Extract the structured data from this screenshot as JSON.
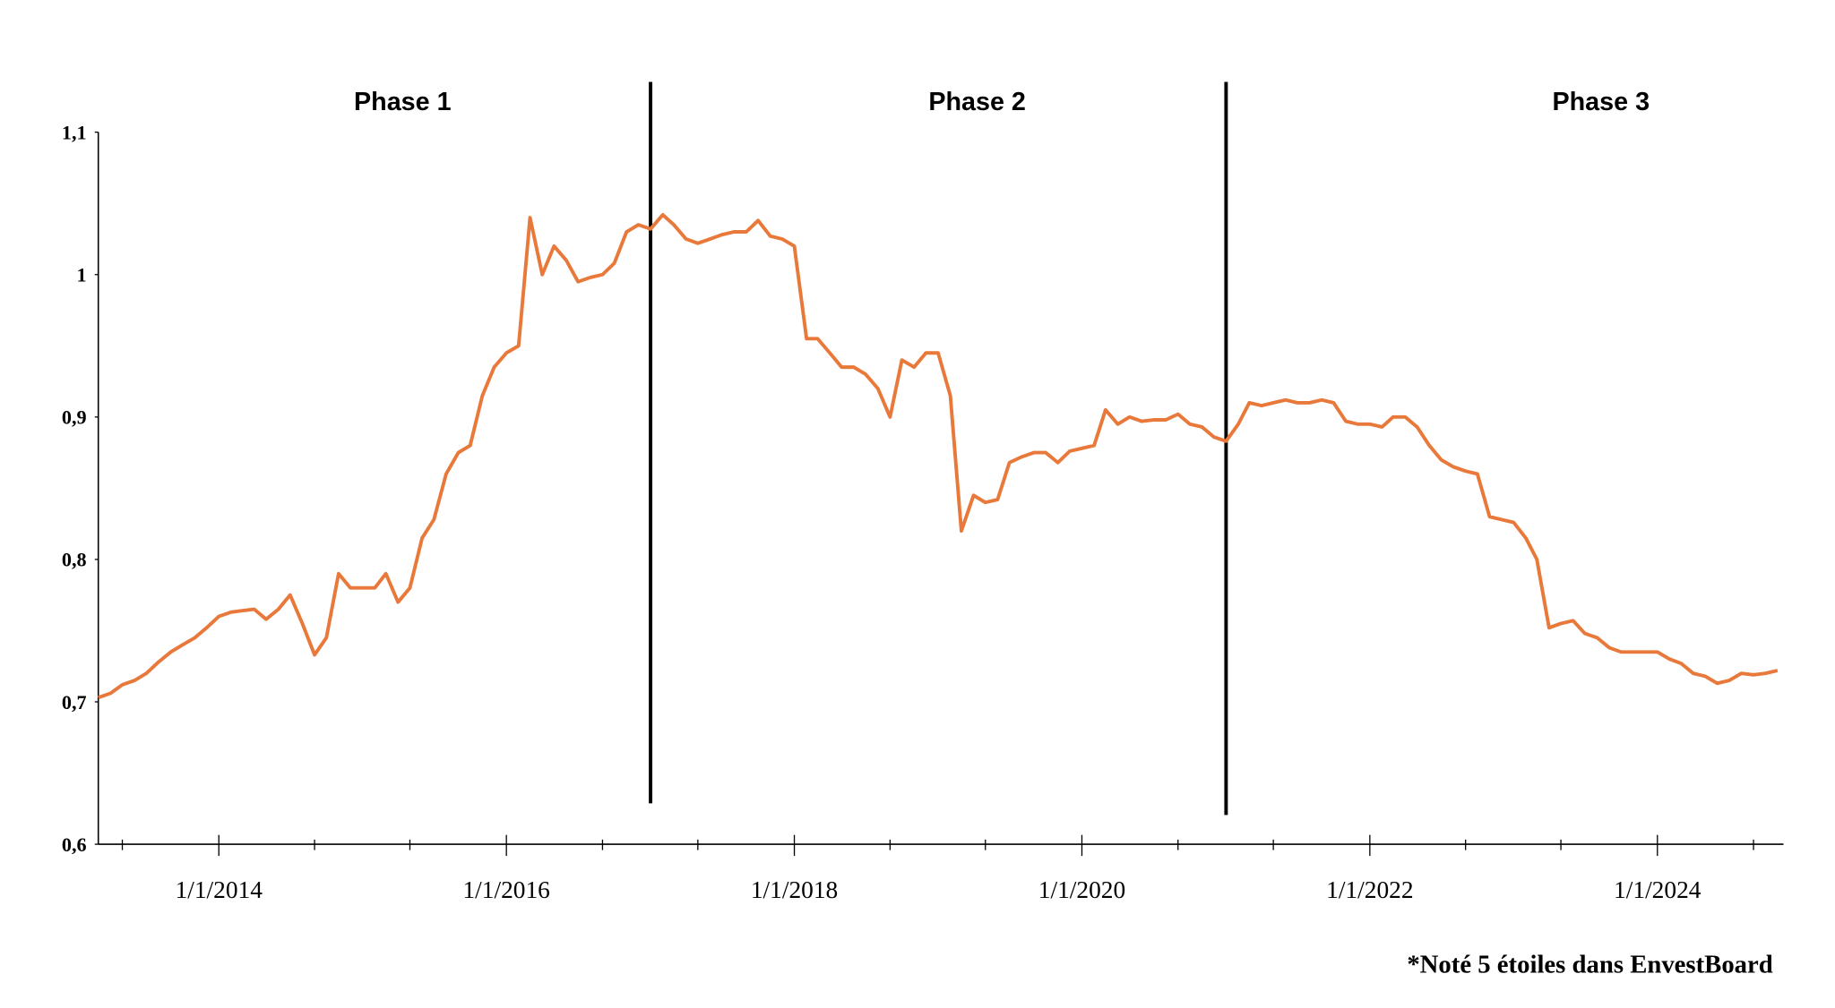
{
  "chart_data": {
    "type": "line",
    "x": [
      "3/1/2013",
      "4/1/2013",
      "5/1/2013",
      "6/1/2013",
      "7/1/2013",
      "8/1/2013",
      "9/1/2013",
      "10/1/2013",
      "11/1/2013",
      "12/1/2013",
      "1/1/2014",
      "2/1/2014",
      "3/1/2014",
      "4/1/2014",
      "5/1/2014",
      "6/1/2014",
      "7/1/2014",
      "8/1/2014",
      "9/1/2014",
      "10/1/2014",
      "11/1/2014",
      "12/1/2014",
      "1/1/2015",
      "2/1/2015",
      "3/1/2015",
      "4/1/2015",
      "5/1/2015",
      "6/1/2015",
      "7/1/2015",
      "8/1/2015",
      "9/1/2015",
      "10/1/2015",
      "11/1/2015",
      "12/1/2015",
      "1/1/2016",
      "2/1/2016",
      "3/1/2016",
      "4/1/2016",
      "5/1/2016",
      "6/1/2016",
      "7/1/2016",
      "8/1/2016",
      "9/1/2016",
      "10/1/2016",
      "11/1/2016",
      "12/1/2016",
      "1/1/2017",
      "2/1/2017",
      "3/1/2017",
      "4/1/2017",
      "5/1/2017",
      "6/1/2017",
      "7/1/2017",
      "8/1/2017",
      "9/1/2017",
      "10/1/2017",
      "11/1/2017",
      "12/1/2017",
      "1/1/2018",
      "2/1/2018",
      "3/1/2018",
      "4/1/2018",
      "5/1/2018",
      "6/1/2018",
      "7/1/2018",
      "8/1/2018",
      "9/1/2018",
      "10/1/2018",
      "11/1/2018",
      "12/1/2018",
      "1/1/2019",
      "2/1/2019",
      "3/1/2019",
      "4/1/2019",
      "5/1/2019",
      "6/1/2019",
      "7/1/2019",
      "8/1/2019",
      "9/1/2019",
      "10/1/2019",
      "11/1/2019",
      "12/1/2019",
      "1/1/2020",
      "2/1/2020",
      "3/1/2020",
      "4/1/2020",
      "5/1/2020",
      "6/1/2020",
      "7/1/2020",
      "8/1/2020",
      "9/1/2020",
      "10/1/2020",
      "11/1/2020",
      "12/1/2020",
      "1/1/2021",
      "2/1/2021",
      "3/1/2021",
      "4/1/2021",
      "5/1/2021",
      "6/1/2021",
      "7/1/2021",
      "8/1/2021",
      "9/1/2021",
      "10/1/2021",
      "11/1/2021",
      "12/1/2021",
      "1/1/2022",
      "2/1/2022",
      "3/1/2022",
      "4/1/2022",
      "5/1/2022",
      "6/1/2022",
      "7/1/2022",
      "8/1/2022",
      "9/1/2022",
      "10/1/2022",
      "11/1/2022",
      "12/1/2022",
      "1/1/2023",
      "2/1/2023",
      "3/1/2023",
      "4/1/2023",
      "5/1/2023",
      "6/1/2023",
      "7/1/2023",
      "8/1/2023",
      "9/1/2023",
      "10/1/2023",
      "11/1/2023",
      "12/1/2023",
      "1/1/2024",
      "2/1/2024",
      "3/1/2024",
      "4/1/2024",
      "5/1/2024",
      "6/1/2024",
      "7/1/2024",
      "8/1/2024",
      "9/1/2024",
      "10/1/2024",
      "11/1/2024"
    ],
    "values": [
      0.703,
      0.706,
      0.712,
      0.715,
      0.72,
      0.728,
      0.735,
      0.74,
      0.745,
      0.752,
      0.76,
      0.763,
      0.764,
      0.765,
      0.758,
      0.765,
      0.775,
      0.755,
      0.733,
      0.745,
      0.79,
      0.78,
      0.78,
      0.78,
      0.79,
      0.77,
      0.78,
      0.815,
      0.828,
      0.86,
      0.875,
      0.88,
      0.915,
      0.935,
      0.945,
      0.95,
      1.04,
      1.0,
      1.02,
      1.01,
      0.995,
      0.998,
      1.0,
      1.008,
      1.03,
      1.035,
      1.032,
      1.042,
      1.035,
      1.025,
      1.022,
      1.025,
      1.028,
      1.03,
      1.03,
      1.038,
      1.027,
      1.025,
      1.02,
      0.955,
      0.955,
      0.945,
      0.935,
      0.935,
      0.93,
      0.92,
      0.9,
      0.94,
      0.935,
      0.945,
      0.945,
      0.915,
      0.82,
      0.845,
      0.84,
      0.842,
      0.868,
      0.872,
      0.875,
      0.875,
      0.868,
      0.876,
      0.878,
      0.88,
      0.905,
      0.895,
      0.9,
      0.897,
      0.898,
      0.898,
      0.902,
      0.895,
      0.893,
      0.886,
      0.883,
      0.895,
      0.91,
      0.908,
      0.91,
      0.912,
      0.91,
      0.91,
      0.912,
      0.91,
      0.897,
      0.895,
      0.895,
      0.893,
      0.9,
      0.9,
      0.893,
      0.88,
      0.87,
      0.865,
      0.862,
      0.86,
      0.83,
      0.828,
      0.826,
      0.815,
      0.8,
      0.752,
      0.755,
      0.757,
      0.748,
      0.745,
      0.738,
      0.735,
      0.735,
      0.735,
      0.735,
      0.73,
      0.727,
      0.72,
      0.718,
      0.713,
      0.715,
      0.72,
      0.719,
      0.72,
      0.722
    ],
    "color": "#e8793a",
    "xlim": [
      "3/1/2013",
      "12/1/2024"
    ],
    "xticks": [
      "1/1/2014",
      "1/1/2016",
      "1/1/2018",
      "1/1/2020",
      "1/1/2022",
      "1/1/2024"
    ],
    "xminorticks": [
      "5/1/2013",
      "9/1/2014",
      "5/1/2015",
      "9/1/2016",
      "5/1/2017",
      "9/1/2018",
      "5/1/2019",
      "9/1/2020",
      "5/1/2021",
      "9/1/2022",
      "5/1/2023",
      "9/1/2024"
    ],
    "ylim": [
      0.6,
      1.1
    ],
    "yticks": [
      {
        "value": 0.6,
        "label": "0,6"
      },
      {
        "value": 0.7,
        "label": "0,7"
      },
      {
        "value": 0.8,
        "label": "0,8"
      },
      {
        "value": 0.9,
        "label": "0,9"
      },
      1,
      {
        "value": 1.1,
        "label": "1,1"
      }
    ],
    "dividers": [
      "1/1/2017",
      "1/1/2021"
    ],
    "phases": [
      "Phase 1",
      "Phase 2",
      "Phase 3"
    ],
    "footnote": "*Noté 5 étoiles dans  EnvestBoard"
  }
}
